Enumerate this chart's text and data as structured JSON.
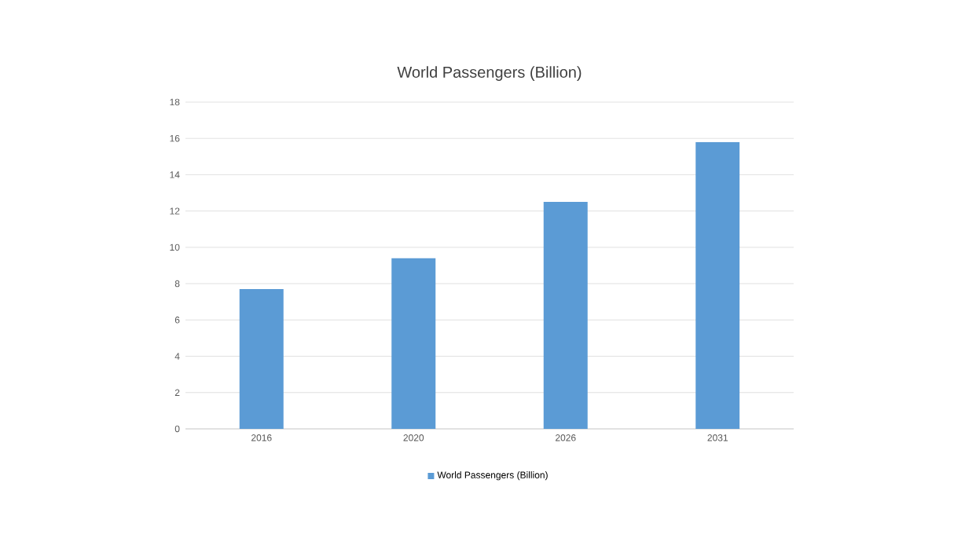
{
  "chart_data": {
    "type": "bar",
    "title": "World Passengers (Billion)",
    "categories": [
      "2016",
      "2020",
      "2026",
      "2031"
    ],
    "series": [
      {
        "name": "World Passengers (Billion)",
        "color": "#5b9bd5",
        "values": [
          7.7,
          9.4,
          12.5,
          15.8
        ]
      }
    ],
    "ylim": [
      0,
      18
    ],
    "yticks": [
      0,
      2,
      4,
      6,
      8,
      10,
      12,
      14,
      16,
      18
    ],
    "grid": "y",
    "legend": "bottom"
  }
}
